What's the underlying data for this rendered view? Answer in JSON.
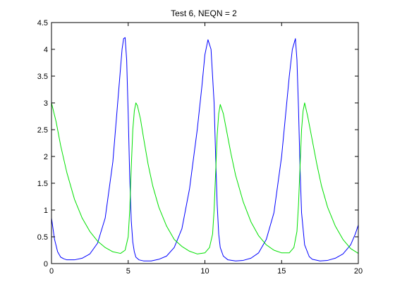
{
  "chart_data": {
    "type": "line",
    "title": "Test 6, NEQN = 2",
    "xlabel": "",
    "ylabel": "",
    "xlim": [
      0,
      20
    ],
    "ylim": [
      0,
      4.5
    ],
    "xticks": [
      0,
      5,
      10,
      15,
      20
    ],
    "yticks": [
      0,
      0.5,
      1,
      1.5,
      2,
      2.5,
      3,
      3.5,
      4,
      4.5
    ],
    "xtick_labels": [
      "0",
      "5",
      "10",
      "15",
      "20"
    ],
    "ytick_labels": [
      "0",
      "0.5",
      "1",
      "1.5",
      "2",
      "2.5",
      "3",
      "3.5",
      "4",
      "4.5"
    ],
    "grid": false,
    "legend": "none",
    "series": [
      {
        "color": "#0000ff",
        "x": [
          0,
          0.2,
          0.4,
          0.6,
          0.8,
          1.0,
          1.5,
          2.0,
          2.5,
          3.0,
          3.5,
          4.0,
          4.2,
          4.4,
          4.6,
          4.7,
          4.8,
          4.9,
          5.0,
          5.1,
          5.2,
          5.3,
          5.4,
          5.5,
          5.7,
          6.0,
          6.5,
          7.0,
          7.5,
          8.0,
          8.5,
          9.0,
          9.5,
          9.8,
          10.0,
          10.2,
          10.4,
          10.6,
          10.7,
          10.8,
          10.9,
          11.0,
          11.2,
          11.5,
          12.0,
          12.5,
          13.0,
          13.5,
          14.0,
          14.5,
          15.0,
          15.3,
          15.5,
          15.7,
          15.9,
          16.0,
          16.1,
          16.2,
          16.3,
          16.5,
          16.8,
          17.0,
          17.5,
          18.0,
          18.5,
          19.0,
          19.5,
          19.8,
          20.0
        ],
        "y": [
          0.85,
          0.45,
          0.22,
          0.12,
          0.09,
          0.07,
          0.07,
          0.1,
          0.18,
          0.38,
          0.85,
          1.9,
          2.6,
          3.3,
          4.0,
          4.2,
          4.22,
          3.8,
          2.8,
          1.6,
          0.8,
          0.4,
          0.22,
          0.12,
          0.07,
          0.05,
          0.05,
          0.08,
          0.14,
          0.3,
          0.65,
          1.4,
          2.5,
          3.3,
          3.9,
          4.18,
          4.0,
          3.0,
          2.0,
          1.1,
          0.55,
          0.3,
          0.14,
          0.07,
          0.05,
          0.06,
          0.1,
          0.2,
          0.45,
          0.95,
          2.0,
          2.9,
          3.5,
          4.0,
          4.2,
          3.8,
          2.9,
          1.8,
          0.95,
          0.35,
          0.13,
          0.08,
          0.05,
          0.06,
          0.1,
          0.18,
          0.35,
          0.55,
          0.72
        ]
      },
      {
        "color": "#00e000",
        "x": [
          0,
          0.3,
          0.6,
          1.0,
          1.5,
          2.0,
          2.5,
          3.0,
          3.5,
          4.0,
          4.5,
          4.8,
          5.0,
          5.1,
          5.2,
          5.3,
          5.4,
          5.5,
          5.6,
          5.8,
          6.0,
          6.3,
          6.6,
          7.0,
          7.5,
          8.0,
          8.5,
          9.0,
          9.5,
          10.0,
          10.3,
          10.5,
          10.6,
          10.7,
          10.8,
          10.9,
          11.0,
          11.2,
          11.4,
          11.7,
          12.0,
          12.5,
          13.0,
          13.5,
          14.0,
          14.5,
          15.0,
          15.5,
          15.8,
          16.0,
          16.1,
          16.2,
          16.3,
          16.4,
          16.5,
          16.7,
          17.0,
          17.3,
          17.6,
          18.0,
          18.5,
          19.0,
          19.5,
          20.0
        ],
        "y": [
          3.0,
          2.65,
          2.2,
          1.7,
          1.2,
          0.85,
          0.6,
          0.42,
          0.3,
          0.22,
          0.19,
          0.25,
          0.5,
          1.0,
          1.8,
          2.5,
          2.85,
          3.0,
          2.95,
          2.7,
          2.35,
          1.85,
          1.45,
          1.05,
          0.7,
          0.45,
          0.32,
          0.23,
          0.18,
          0.2,
          0.3,
          0.55,
          1.0,
          1.7,
          2.4,
          2.8,
          2.97,
          2.8,
          2.5,
          2.05,
          1.65,
          1.15,
          0.78,
          0.52,
          0.35,
          0.25,
          0.2,
          0.2,
          0.3,
          0.6,
          1.1,
          1.8,
          2.5,
          2.85,
          3.0,
          2.75,
          2.3,
          1.85,
          1.45,
          1.05,
          0.7,
          0.45,
          0.28,
          0.19
        ]
      }
    ]
  }
}
